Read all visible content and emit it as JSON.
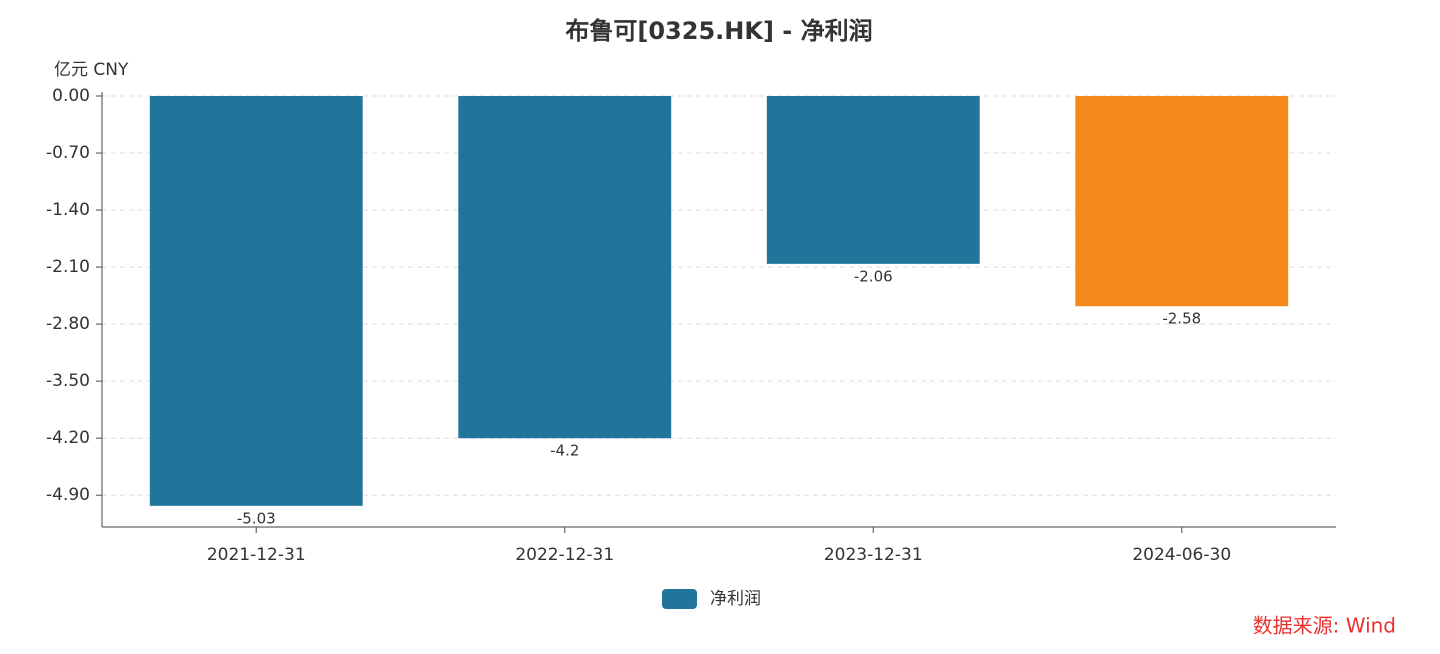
{
  "chart_data": {
    "type": "bar",
    "title": "布鲁可[0325.HK] - 净利润",
    "y_unit": "亿元  CNY",
    "categories": [
      "2021-12-31",
      "2022-12-31",
      "2023-12-31",
      "2024-06-30"
    ],
    "series": [
      {
        "name": "净利润",
        "color": "#21759b",
        "values": [
          -5.03,
          -4.2,
          -2.06,
          -2.58
        ],
        "colors": [
          "#21759b",
          "#21759b",
          "#21759b",
          "#f5891b"
        ]
      }
    ],
    "ylim": [
      -5.29,
      0
    ],
    "yticks": [
      {
        "value": 0,
        "label": "0.00"
      },
      {
        "value": -0.7,
        "label": "-0.70"
      },
      {
        "value": -1.4,
        "label": "-1.40"
      },
      {
        "value": -2.1,
        "label": "-2.10"
      },
      {
        "value": -2.8,
        "label": "-2.80"
      },
      {
        "value": -3.5,
        "label": "-3.50"
      },
      {
        "value": -4.2,
        "label": "-4.20"
      },
      {
        "value": -4.9,
        "label": "-4.90"
      }
    ],
    "grid": true,
    "source": "数据来源: Wind",
    "source_color": "#e8312f"
  }
}
